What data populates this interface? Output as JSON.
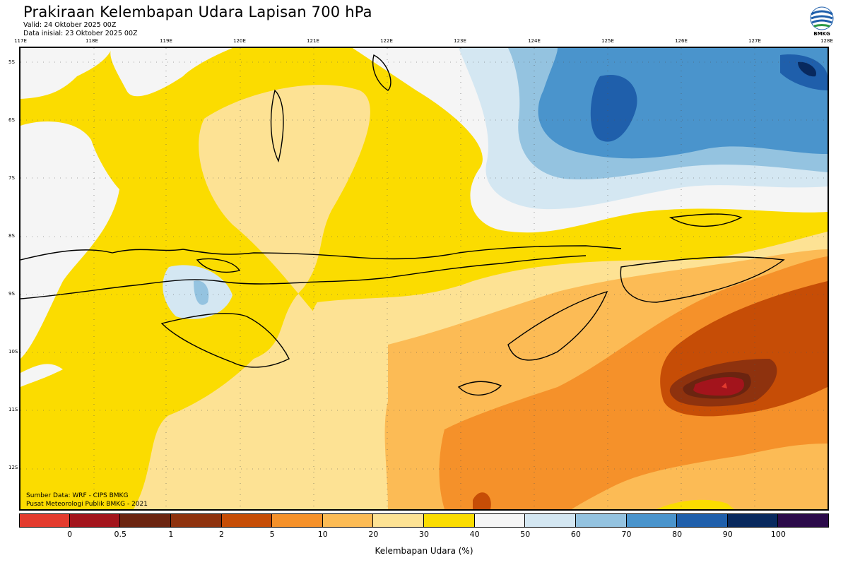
{
  "header": {
    "title": "Prakiraan Kelembapan Udara Lapisan 700 hPa",
    "valid": "Valid: 24 Oktober 2025 00Z",
    "init": "Data inisial: 23 Oktober 2025 00Z"
  },
  "logo": {
    "text": "BMKG",
    "icon": "bmkg-logo-icon"
  },
  "map": {
    "lon_labels": [
      "117E",
      "118E",
      "119E",
      "120E",
      "121E",
      "122E",
      "123E",
      "124E",
      "125E",
      "126E",
      "127E",
      "128E"
    ],
    "lat_labels": [
      "5S",
      "6S",
      "7S",
      "8S",
      "9S",
      "10S",
      "11S",
      "12S"
    ]
  },
  "credits": {
    "source": "Sumber Data: WRF - CIPS BMKG",
    "org": "Pusat Meteorologi Publik BMKG - 2021"
  },
  "legend": {
    "colors": [
      "#e33b2e",
      "#a3141c",
      "#6b2410",
      "#8e320e",
      "#c64d06",
      "#f5912a",
      "#fcbb55",
      "#fde294",
      "#fbdc00",
      "#f5f5f5",
      "#d4e7f2",
      "#94c3e0",
      "#4a94cc",
      "#1f5fab",
      "#08295e",
      "#2b0a4a"
    ],
    "ticks": [
      "0",
      "0.5",
      "1",
      "2",
      "5",
      "10",
      "20",
      "30",
      "40",
      "50",
      "60",
      "70",
      "80",
      "90",
      "100"
    ],
    "label": "Kelembapan Udara (%)"
  }
}
